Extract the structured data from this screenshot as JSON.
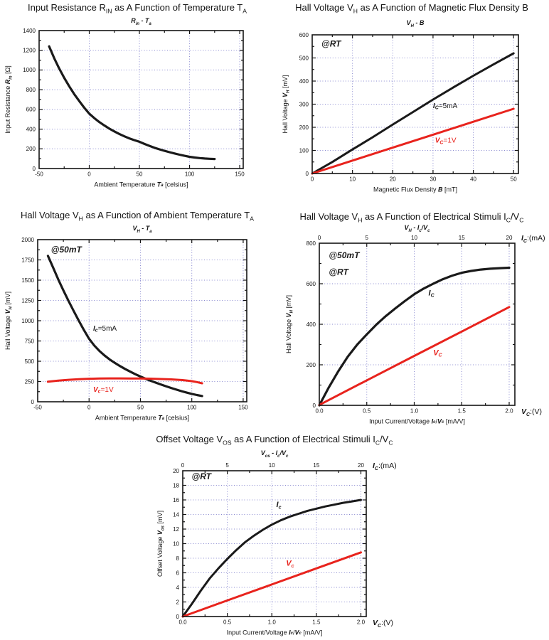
{
  "page": {
    "background": "#ffffff"
  },
  "style": {
    "black": "#1a1a1a",
    "red": "#e8231d",
    "grid": "#8a8ad0",
    "frame": "#141414",
    "text": "#141414"
  },
  "chart_data": [
    {
      "id": "input-resistance-vs-temperature",
      "type": "line",
      "title": "Input Resistance R_{IN} as A Function of Temperature T_{A}",
      "subtitle": "*R_{in} - T_{a}*",
      "xlabel": "Ambient Temperature *T_{a}* [celsius]",
      "ylabel": "Input Resistance *R_{in}* [Ω]",
      "x_axis": {
        "min": -50,
        "max": 150,
        "frame_max": 153.5,
        "major_ticks": [
          -50,
          0,
          50,
          100,
          150
        ],
        "tick_labels": [
          "-50",
          "0",
          "50",
          "100",
          "150"
        ],
        "minor_step": 25
      },
      "y_axis": {
        "min": 0,
        "max": 1400,
        "major_ticks": [
          0,
          200,
          400,
          600,
          800,
          1000,
          1200,
          1400
        ],
        "tick_labels": [
          "0",
          "200",
          "400",
          "600",
          "800",
          "1000",
          "1200",
          "1400"
        ],
        "minor_step": 100
      },
      "grid": "dotted",
      "annotations": [],
      "series": [
        {
          "name": "RIN",
          "color": "#1a1a1a",
          "width": 3.2,
          "points": [
            [
              -40,
              1240
            ],
            [
              -35,
              1120
            ],
            [
              -30,
              1015
            ],
            [
              -25,
              920
            ],
            [
              -20,
              835
            ],
            [
              -15,
              755
            ],
            [
              -10,
              685
            ],
            [
              -5,
              617
            ],
            [
              0,
              557
            ],
            [
              5,
              512
            ],
            [
              10,
              472
            ],
            [
              15,
              437
            ],
            [
              20,
              405
            ],
            [
              25,
              377
            ],
            [
              30,
              351
            ],
            [
              35,
              327
            ],
            [
              40,
              306
            ],
            [
              45,
              288
            ],
            [
              50,
              272
            ],
            [
              55,
              250
            ],
            [
              60,
              230
            ],
            [
              65,
              211
            ],
            [
              70,
              195
            ],
            [
              75,
              180
            ],
            [
              80,
              166
            ],
            [
              85,
              153
            ],
            [
              90,
              141
            ],
            [
              95,
              129
            ],
            [
              100,
              119
            ],
            [
              105,
              112
            ],
            [
              110,
              106
            ],
            [
              115,
              102
            ],
            [
              120,
              99
            ],
            [
              125,
              97
            ]
          ]
        }
      ]
    },
    {
      "id": "hall-voltage-vs-flux-density",
      "type": "line",
      "title": "Hall Voltage V_{H} as A Function of Magnetic Flux Density B",
      "subtitle": "*V_{H} - B*",
      "xlabel": "Magnetic Flux Density *B* [mT]",
      "ylabel": "Hall Voltage *V_{H}* [mV]",
      "x_axis": {
        "min": 0,
        "max": 50,
        "frame_max": 51.2,
        "major_ticks": [
          0,
          10,
          20,
          30,
          40,
          50
        ],
        "tick_labels": [
          "0",
          "10",
          "20",
          "30",
          "40",
          "50"
        ],
        "minor_step": 5
      },
      "y_axis": {
        "min": 0,
        "max": 600,
        "major_ticks": [
          0,
          100,
          200,
          300,
          400,
          500,
          600
        ],
        "tick_labels": [
          "0",
          "100",
          "200",
          "300",
          "400",
          "500",
          "600"
        ],
        "minor_step": 50
      },
      "grid": "dotted",
      "annotations": [
        {
          "text": "*@RT*",
          "x": 2.3,
          "y": 558,
          "color": "black",
          "size": 12
        },
        {
          "text": "*I_{C}*=5mA",
          "x": 30,
          "y": 293,
          "color": "black",
          "size": 10
        },
        {
          "text": "*V_{C}*=1V",
          "x": 30.5,
          "y": 143,
          "color": "red",
          "size": 10
        }
      ],
      "series": [
        {
          "name": "IC=5mA",
          "color": "#1a1a1a",
          "width": 3,
          "points": [
            [
              0,
              0
            ],
            [
              5,
              50
            ],
            [
              10,
              104
            ],
            [
              15,
              157
            ],
            [
              20,
              212
            ],
            [
              25,
              266
            ],
            [
              30,
              320
            ],
            [
              35,
              372
            ],
            [
              40,
              423
            ],
            [
              45,
              472
            ],
            [
              50,
              520
            ]
          ]
        },
        {
          "name": "VC=1V",
          "color": "#e8231d",
          "width": 3,
          "points": [
            [
              0,
              0
            ],
            [
              10,
              56
            ],
            [
              20,
              112
            ],
            [
              30,
              168
            ],
            [
              40,
              224
            ],
            [
              50,
              280
            ]
          ]
        }
      ]
    },
    {
      "id": "hall-voltage-vs-temperature",
      "type": "line",
      "title": "Hall Voltage V_{H} as A Function of Ambient Temperature T_{A}",
      "subtitle": "*V_{H} - T_{a}*",
      "xlabel": "Ambient Temperature *T_{a}* [celsius]",
      "ylabel": "Hall Voltage *V_{H}* [mV]",
      "x_axis": {
        "min": -50,
        "max": 150,
        "frame_max": 153.5,
        "major_ticks": [
          -50,
          0,
          50,
          100,
          150
        ],
        "tick_labels": [
          "-50",
          "0",
          "50",
          "100",
          "150"
        ],
        "minor_step": 25
      },
      "y_axis": {
        "min": 0,
        "max": 2000,
        "major_ticks": [
          0,
          250,
          500,
          750,
          1000,
          1250,
          1500,
          1750,
          2000
        ],
        "tick_labels": [
          "0",
          "250",
          "500",
          "750",
          "1000",
          "1250",
          "1500",
          "1750",
          "2000"
        ],
        "minor_step": 125
      },
      "grid": "dotted",
      "annotations": [
        {
          "text": "*@50mT*",
          "x": -37,
          "y": 1868,
          "color": "black",
          "size": 12
        },
        {
          "text": "*I_{c}*=5mA",
          "x": 4,
          "y": 905,
          "color": "black",
          "size": 10
        },
        {
          "text": "*V_{c}*=1V",
          "x": 4,
          "y": 150,
          "color": "red",
          "size": 10
        }
      ],
      "series": [
        {
          "name": "IC=5mA",
          "color": "#1a1a1a",
          "width": 3.2,
          "points": [
            [
              -40,
              1800
            ],
            [
              -35,
              1655
            ],
            [
              -30,
              1510
            ],
            [
              -25,
              1375
            ],
            [
              -20,
              1245
            ],
            [
              -15,
              1120
            ],
            [
              -10,
              1000
            ],
            [
              -5,
              885
            ],
            [
              0,
              778
            ],
            [
              5,
              695
            ],
            [
              10,
              628
            ],
            [
              15,
              572
            ],
            [
              20,
              523
            ],
            [
              25,
              480
            ],
            [
              30,
              441
            ],
            [
              35,
              405
            ],
            [
              40,
              372
            ],
            [
              45,
              340
            ],
            [
              50,
              311
            ],
            [
              55,
              284
            ],
            [
              60,
              259
            ],
            [
              65,
              236
            ],
            [
              70,
              213
            ],
            [
              75,
              191
            ],
            [
              80,
              170
            ],
            [
              85,
              150
            ],
            [
              90,
              131
            ],
            [
              95,
              113
            ],
            [
              100,
              97
            ],
            [
              105,
              83
            ],
            [
              110,
              71
            ]
          ]
        },
        {
          "name": "VC=1V",
          "color": "#e8231d",
          "width": 3,
          "points": [
            [
              -40,
              247
            ],
            [
              -30,
              261
            ],
            [
              -20,
              271
            ],
            [
              -10,
              279
            ],
            [
              0,
              284
            ],
            [
              10,
              287
            ],
            [
              20,
              289
            ],
            [
              30,
              289
            ],
            [
              40,
              288
            ],
            [
              50,
              287
            ],
            [
              60,
              285
            ],
            [
              70,
              281
            ],
            [
              80,
              276
            ],
            [
              90,
              268
            ],
            [
              95,
              262
            ],
            [
              100,
              254
            ],
            [
              105,
              243
            ],
            [
              110,
              228
            ]
          ]
        }
      ]
    },
    {
      "id": "hall-voltage-vs-electrical-stimuli",
      "type": "line",
      "title": "Hall Voltage V_{H} as A Function of Electrical Stimuli I_{C}/V_{C}",
      "subtitle": "*V_{H} - I_{c}/V_{c}*",
      "xlabel": "Input Current/Voltage *I_{c}*/*V_{c}* [mA/V]",
      "ylabel": "Hall Voltage *V_{H}* [mV]",
      "x_axis": {
        "min": 0,
        "max": 2,
        "frame_max": 2.06,
        "major_ticks": [
          0,
          0.5,
          1.0,
          1.5,
          2.0
        ],
        "tick_labels": [
          "0.0",
          "0.5",
          "1.0",
          "1.5",
          "2.0"
        ],
        "minor_step": 0.25
      },
      "y_axis": {
        "min": 0,
        "max": 800,
        "major_ticks": [
          0,
          200,
          400,
          600,
          800
        ],
        "tick_labels": [
          "0",
          "200",
          "400",
          "600",
          "800"
        ],
        "minor_step": 100
      },
      "top_axis": {
        "ticks": [
          0,
          5,
          10,
          15,
          20
        ],
        "labels": [
          "0",
          "5",
          "10",
          "15",
          "20"
        ],
        "scale": 10,
        "corner_label": "*I_{C}*:(mA)"
      },
      "corner_label_bottom": "*V_{C}*:(V)",
      "grid": "dotted",
      "annotations": [
        {
          "text": "*@50mT*",
          "x": 0.1,
          "y": 737,
          "color": "black",
          "size": 12
        },
        {
          "text": "*@RT*",
          "x": 0.1,
          "y": 655,
          "color": "black",
          "size": 12
        },
        {
          "text": "*I_{C}*",
          "x": 1.15,
          "y": 553,
          "color": "black",
          "size": 11
        },
        {
          "text": "*V_{C}*",
          "x": 1.2,
          "y": 258,
          "color": "red",
          "size": 11
        }
      ],
      "series": [
        {
          "name": "IC",
          "color": "#1a1a1a",
          "width": 3.2,
          "points": [
            [
              0,
              0
            ],
            [
              0.1,
              88
            ],
            [
              0.2,
              168
            ],
            [
              0.3,
              240
            ],
            [
              0.4,
              300
            ],
            [
              0.5,
              350
            ],
            [
              0.6,
              398
            ],
            [
              0.7,
              440
            ],
            [
              0.8,
              478
            ],
            [
              0.9,
              514
            ],
            [
              1.0,
              548
            ],
            [
              1.1,
              576
            ],
            [
              1.2,
              600
            ],
            [
              1.3,
              622
            ],
            [
              1.4,
              640
            ],
            [
              1.5,
              654
            ],
            [
              1.6,
              663
            ],
            [
              1.7,
              670
            ],
            [
              1.8,
              674
            ],
            [
              1.9,
              677
            ],
            [
              2.0,
              679
            ]
          ]
        },
        {
          "name": "VC",
          "color": "#e8231d",
          "width": 3,
          "points": [
            [
              0,
              2
            ],
            [
              0.5,
              123
            ],
            [
              1.0,
              244
            ],
            [
              1.5,
              364
            ],
            [
              2.0,
              485
            ]
          ]
        }
      ]
    },
    {
      "id": "offset-voltage-vs-electrical-stimuli",
      "type": "line",
      "title": "Offset Voltage V_{OS} as A Function of Electrical Stimuli I_{C}/V_{C}",
      "subtitle": "*V_{os} - I_{c}/V_{c}*",
      "xlabel": "Input Current/Voltage *I_{c}*/*V_{c}* [mA/V]",
      "ylabel": "Offset Voltage *V_{os}* [mV]",
      "x_axis": {
        "min": 0,
        "max": 2,
        "frame_max": 2.06,
        "major_ticks": [
          0,
          0.5,
          1.0,
          1.5,
          2.0
        ],
        "tick_labels": [
          "0.0",
          "0.5",
          "1.0",
          "1.5",
          "2.0"
        ],
        "minor_step": 0.25
      },
      "y_axis": {
        "min": 0,
        "max": 20,
        "major_ticks": [
          0,
          2,
          4,
          6,
          8,
          10,
          12,
          14,
          16,
          18,
          20
        ],
        "tick_labels": [
          "0",
          "2",
          "4",
          "6",
          "8",
          "10",
          "12",
          "14",
          "16",
          "18",
          "20"
        ],
        "minor_step": 1
      },
      "top_axis": {
        "ticks": [
          0,
          5,
          10,
          15,
          20
        ],
        "labels": [
          "0",
          "5",
          "10",
          "15",
          "20"
        ],
        "scale": 10,
        "corner_label": "*I_{C}*:(mA)"
      },
      "corner_label_bottom": "*V_{C}*:(V)",
      "grid": "dotted",
      "annotations": [
        {
          "text": "*@RT*",
          "x": 0.1,
          "y": 19.1,
          "color": "black",
          "size": 12
        },
        {
          "text": "*I_{c}*",
          "x": 1.05,
          "y": 15.3,
          "color": "black",
          "size": 11
        },
        {
          "text": "*V_{c}*",
          "x": 1.16,
          "y": 7.25,
          "color": "red",
          "size": 11
        }
      ],
      "series": [
        {
          "name": "IC",
          "color": "#1a1a1a",
          "width": 3,
          "points": [
            [
              0,
              0
            ],
            [
              0.1,
              1.7
            ],
            [
              0.2,
              3.5
            ],
            [
              0.3,
              5.2
            ],
            [
              0.4,
              6.6
            ],
            [
              0.5,
              7.9
            ],
            [
              0.6,
              9.1
            ],
            [
              0.7,
              10.2
            ],
            [
              0.8,
              11.1
            ],
            [
              0.9,
              11.9
            ],
            [
              1.0,
              12.6
            ],
            [
              1.1,
              13.2
            ],
            [
              1.2,
              13.7
            ],
            [
              1.3,
              14.1
            ],
            [
              1.4,
              14.5
            ],
            [
              1.5,
              14.8
            ],
            [
              1.6,
              15.1
            ],
            [
              1.7,
              15.35
            ],
            [
              1.8,
              15.6
            ],
            [
              1.9,
              15.8
            ],
            [
              2.0,
              16.0
            ]
          ]
        },
        {
          "name": "VC",
          "color": "#e8231d",
          "width": 3,
          "points": [
            [
              0,
              0
            ],
            [
              0.5,
              2.2
            ],
            [
              1.0,
              4.4
            ],
            [
              1.5,
              6.6
            ],
            [
              2.0,
              8.8
            ]
          ]
        }
      ]
    }
  ]
}
